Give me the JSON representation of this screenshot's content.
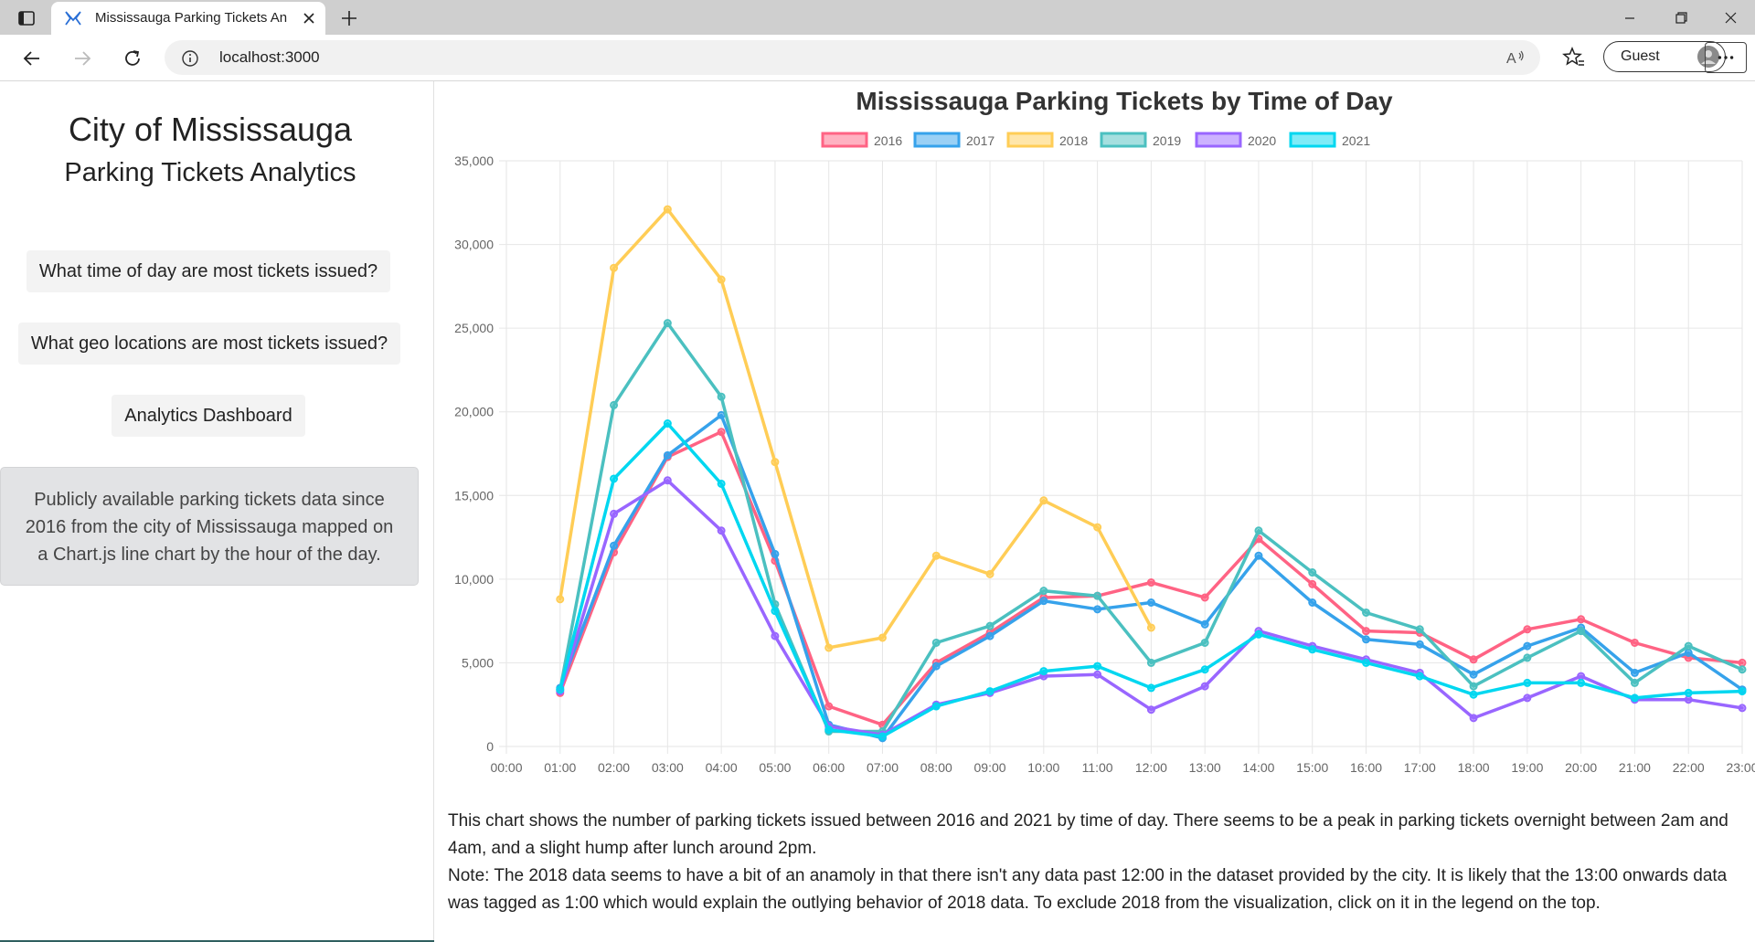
{
  "browser": {
    "tab_title": "Mississauga Parking Tickets Anal",
    "url": "localhost:3000",
    "profile_label": "Guest",
    "icons": [
      "sidebar-icon",
      "app-favicon-icon",
      "close-icon",
      "plus-icon",
      "minimize-icon",
      "restore-icon",
      "close-window-icon",
      "back-arrow-icon",
      "forward-arrow-icon",
      "refresh-icon",
      "info-icon",
      "read-aloud-icon",
      "favorites-icon",
      "avatar-icon",
      "more-icon"
    ]
  },
  "sidebar": {
    "title": "City of Mississauga",
    "subtitle": "Parking Tickets Analytics",
    "buttons": [
      {
        "label": "What time of day are most tickets issued?"
      },
      {
        "label": "What geo locations are most tickets issued?"
      },
      {
        "label": "Analytics Dashboard"
      }
    ],
    "info": "Publicly available parking tickets data since 2016 from the city of Mississauga mapped on a Chart.js line chart by the hour of the day."
  },
  "description": {
    "line1": "This chart shows the number of parking tickets issued between 2016 and 2021 by time of day. There seems to be a peak in parking tickets overnight between 2am and 4am, and a slight hump after lunch around 2pm.",
    "line2": "Note: The 2018 data seems to have a bit of an anamoly in that there isn't any data past 12:00 in the dataset provided by the city. It is likely that the 13:00 onwards data was tagged as 1:00 which would explain the outlying behavior of 2018 data. To exclude 2018 from the visualization, click on it in the legend on the top."
  },
  "chart_data": {
    "type": "line",
    "title": "Mississauga Parking Tickets by Time of Day",
    "x": [
      "00:00",
      "01:00",
      "02:00",
      "03:00",
      "04:00",
      "05:00",
      "06:00",
      "07:00",
      "08:00",
      "09:00",
      "10:00",
      "11:00",
      "12:00",
      "13:00",
      "14:00",
      "15:00",
      "16:00",
      "17:00",
      "18:00",
      "19:00",
      "20:00",
      "21:00",
      "22:00",
      "23:00"
    ],
    "ylim": [
      0,
      35000
    ],
    "yticks": [
      0,
      5000,
      10000,
      15000,
      20000,
      25000,
      30000,
      35000
    ],
    "ytick_labels": [
      "0",
      "5,000",
      "10,000",
      "15,000",
      "20,000",
      "25,000",
      "30,000",
      "35,000"
    ],
    "legend_position": "top",
    "grid": true,
    "series": [
      {
        "name": "2016",
        "color": "#ff6384",
        "values": [
          null,
          3200,
          11600,
          17300,
          18800,
          11100,
          2400,
          1300,
          5000,
          6800,
          8900,
          9000,
          9800,
          8900,
          12400,
          9700,
          6900,
          6800,
          5200,
          7000,
          7600,
          6200,
          5300,
          5000
        ]
      },
      {
        "name": "2017",
        "color": "#36a2eb",
        "values": [
          null,
          3500,
          12000,
          17400,
          19800,
          11500,
          1300,
          500,
          4800,
          6600,
          8700,
          8200,
          8600,
          7300,
          11400,
          8600,
          6400,
          6100,
          4300,
          6000,
          7100,
          4400,
          5600,
          3400
        ]
      },
      {
        "name": "2018",
        "color": "#ffcd56",
        "values": [
          null,
          8800,
          28600,
          32100,
          27900,
          17000,
          5900,
          6500,
          11400,
          10300,
          14700,
          13100,
          7100,
          null,
          null,
          null,
          null,
          null,
          null,
          null,
          null,
          null,
          null,
          null
        ]
      },
      {
        "name": "2019",
        "color": "#4bc0c0",
        "values": [
          null,
          3400,
          20400,
          25300,
          20900,
          8500,
          900,
          900,
          6200,
          7200,
          9300,
          9000,
          5000,
          6200,
          12900,
          10400,
          8000,
          7000,
          3600,
          5300,
          6900,
          3800,
          6000,
          4600
        ]
      },
      {
        "name": "2020",
        "color": "#9966ff",
        "values": [
          null,
          3300,
          13900,
          15900,
          12900,
          6600,
          1200,
          700,
          2500,
          3200,
          4200,
          4300,
          2200,
          3600,
          6900,
          6000,
          5200,
          4400,
          1700,
          2900,
          4200,
          2800,
          2800,
          2300
        ]
      },
      {
        "name": "2021",
        "color": "#00d7f0",
        "values": [
          null,
          3400,
          16000,
          19300,
          15700,
          8100,
          1000,
          600,
          2400,
          3300,
          4500,
          4800,
          3500,
          4600,
          6700,
          5800,
          5000,
          4200,
          3100,
          3800,
          3800,
          2900,
          3200,
          3300
        ]
      }
    ]
  }
}
